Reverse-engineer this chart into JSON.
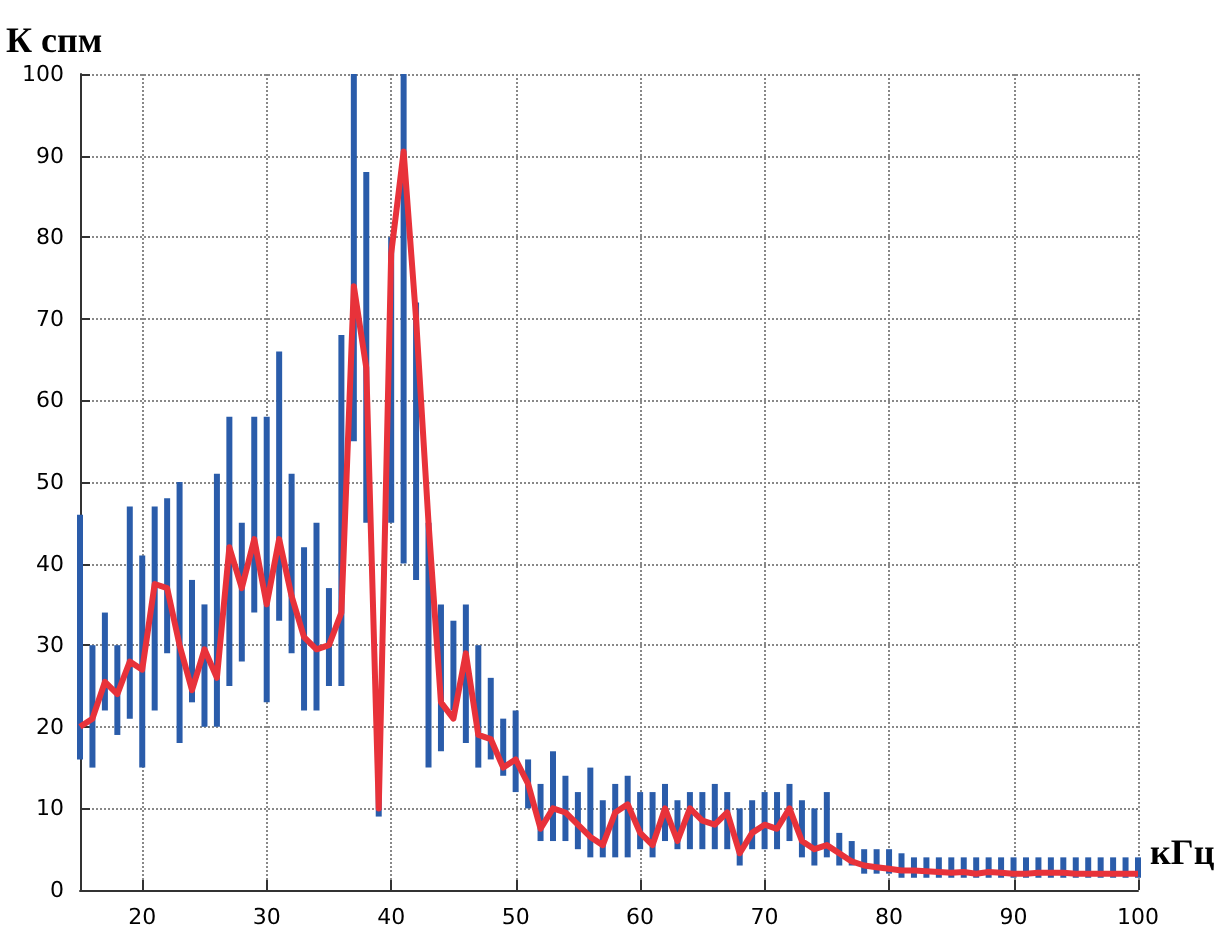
{
  "chart_data": {
    "type": "line",
    "xlabel": "кГц",
    "ylabel": "К спм",
    "x": [
      15,
      16,
      17,
      18,
      19,
      20,
      21,
      22,
      23,
      24,
      25,
      26,
      27,
      28,
      29,
      30,
      31,
      32,
      33,
      34,
      35,
      36,
      37,
      38,
      39,
      40,
      41,
      42,
      43,
      44,
      45,
      46,
      47,
      48,
      49,
      50,
      51,
      52,
      53,
      54,
      55,
      56,
      57,
      58,
      59,
      60,
      61,
      62,
      63,
      64,
      65,
      66,
      67,
      68,
      69,
      70,
      71,
      72,
      73,
      74,
      75,
      76,
      77,
      78,
      79,
      80,
      81,
      82,
      83,
      84,
      85,
      86,
      87,
      88,
      89,
      90,
      91,
      92,
      93,
      94,
      95,
      96,
      97,
      98,
      99,
      100
    ],
    "series": [
      {
        "color": "#e8323a",
        "values": [
          20,
          21,
          25.5,
          24,
          28,
          27,
          37.5,
          37,
          30,
          24.5,
          29.5,
          26,
          42,
          37,
          43,
          35,
          43,
          36,
          31,
          29.5,
          30,
          34,
          74,
          64,
          10,
          78,
          90.5,
          70,
          45,
          23,
          21,
          29,
          19,
          18.5,
          15,
          16,
          13,
          7.5,
          10,
          9.5,
          8,
          6.5,
          5.5,
          9.5,
          10.5,
          7,
          5.5,
          10,
          6,
          10,
          8.5,
          8,
          9.5,
          4.5,
          7,
          8,
          7.5,
          10,
          6,
          5,
          5.5,
          4.5,
          3.5,
          3,
          2.8,
          2.6,
          2.4,
          2.4,
          2.3,
          2.2,
          2.1,
          2.2,
          2,
          2.2,
          2.1,
          2,
          2,
          2.1,
          2.1,
          2.1,
          2,
          2,
          2,
          2,
          2,
          2
        ],
        "errors": [
          [
            16,
            46
          ],
          [
            15,
            30
          ],
          [
            22,
            34
          ],
          [
            19,
            30
          ],
          [
            21,
            47
          ],
          [
            15,
            41
          ],
          [
            22,
            47
          ],
          [
            29,
            48
          ],
          [
            18,
            50
          ],
          [
            23,
            38
          ],
          [
            20,
            35
          ],
          [
            20,
            51
          ],
          [
            25,
            58
          ],
          [
            28,
            45
          ],
          [
            34,
            58
          ],
          [
            23,
            58
          ],
          [
            33,
            66
          ],
          [
            29,
            51
          ],
          [
            22,
            42
          ],
          [
            22,
            45
          ],
          [
            25,
            37
          ],
          [
            25,
            68
          ],
          [
            55,
            100
          ],
          [
            45,
            88
          ],
          [
            9,
            14
          ],
          [
            45,
            80
          ],
          [
            40,
            100
          ],
          [
            38,
            72
          ],
          [
            15,
            45
          ],
          [
            17,
            35
          ],
          [
            22,
            33
          ],
          [
            18,
            35
          ],
          [
            15,
            30
          ],
          [
            16,
            26
          ],
          [
            14,
            21
          ],
          [
            12,
            22
          ],
          [
            10,
            16
          ],
          [
            6,
            13
          ],
          [
            6,
            17
          ],
          [
            6,
            14
          ],
          [
            5,
            12
          ],
          [
            4,
            15
          ],
          [
            4,
            11
          ],
          [
            4,
            13
          ],
          [
            4,
            14
          ],
          [
            5,
            12
          ],
          [
            4,
            12
          ],
          [
            6,
            13
          ],
          [
            5,
            11
          ],
          [
            5,
            12
          ],
          [
            5,
            12
          ],
          [
            5,
            13
          ],
          [
            5,
            12
          ],
          [
            3,
            10
          ],
          [
            5,
            11
          ],
          [
            5,
            12
          ],
          [
            5,
            12
          ],
          [
            6,
            13
          ],
          [
            4,
            11
          ],
          [
            3,
            10
          ],
          [
            4,
            12
          ],
          [
            3,
            7
          ],
          [
            3,
            6
          ],
          [
            2,
            5
          ],
          [
            2,
            5
          ],
          [
            2,
            5
          ],
          [
            1.5,
            4.5
          ],
          [
            1.5,
            4
          ],
          [
            1.5,
            4
          ],
          [
            1.5,
            4
          ],
          [
            1.5,
            4
          ],
          [
            1.5,
            4
          ],
          [
            1.5,
            4
          ],
          [
            1.5,
            4
          ],
          [
            1.5,
            4
          ],
          [
            1.5,
            4
          ],
          [
            1.5,
            4
          ],
          [
            1.5,
            4
          ],
          [
            1.5,
            4
          ],
          [
            1.5,
            4
          ],
          [
            1.5,
            4
          ],
          [
            1.5,
            4
          ],
          [
            1.5,
            4
          ],
          [
            1.5,
            4
          ],
          [
            1.5,
            4
          ],
          [
            1.5,
            4
          ]
        ]
      }
    ],
    "xlim": [
      15,
      100
    ],
    "xticks": [
      20,
      30,
      40,
      50,
      60,
      70,
      80,
      90,
      100
    ],
    "ylim": [
      0,
      100
    ],
    "yticks": [
      0,
      10,
      20,
      30,
      40,
      50,
      60,
      70,
      80,
      90,
      100
    ],
    "grid": true,
    "marker": "none",
    "line_style": "solid"
  }
}
